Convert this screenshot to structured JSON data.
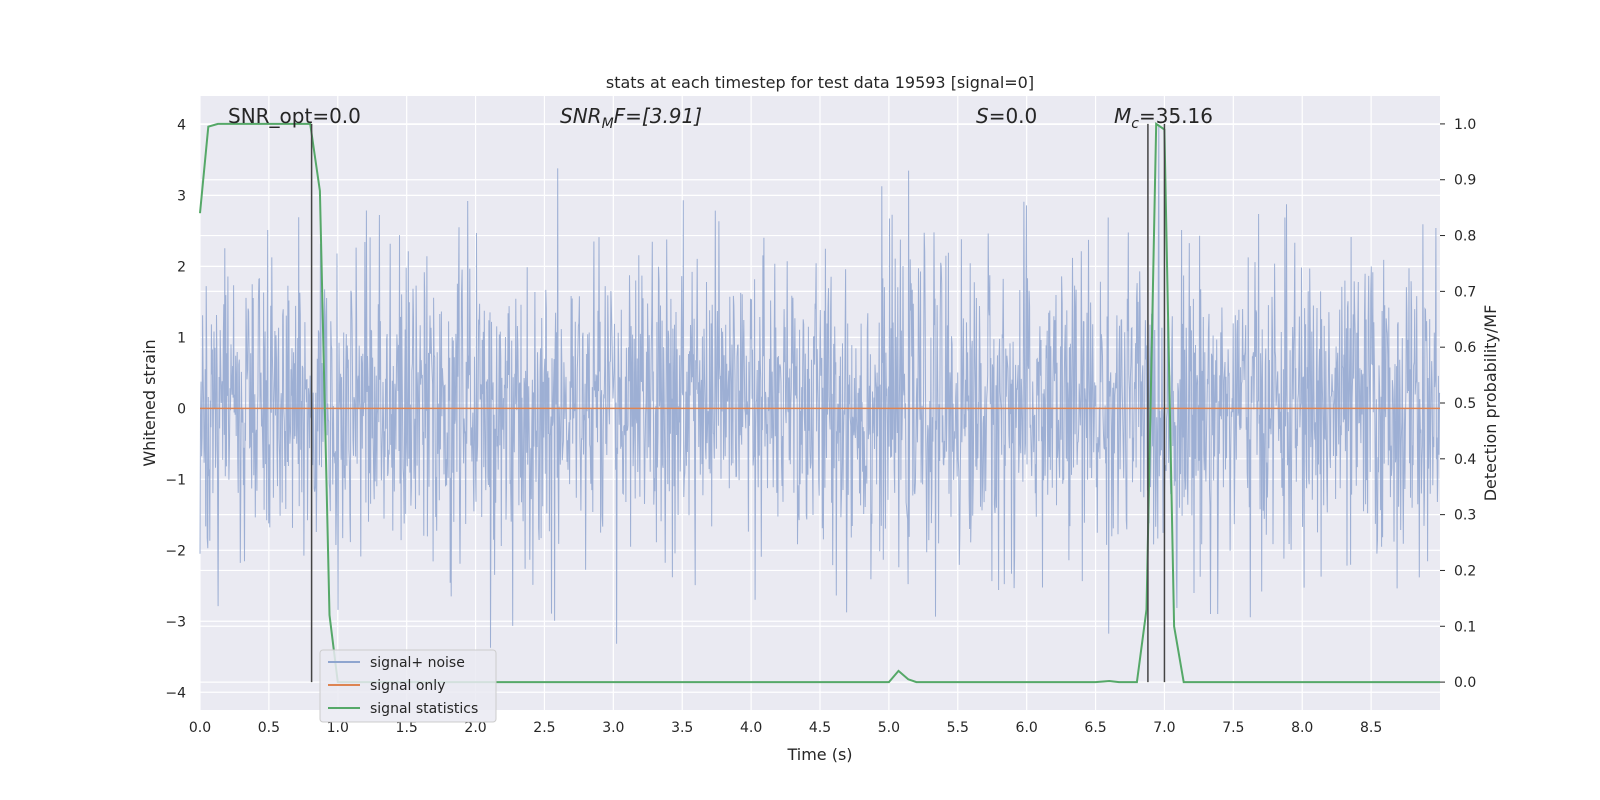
{
  "chart_data": {
    "type": "line",
    "title": "stats at each timestep for test data 19593 [signal=0]",
    "xlabel": "Time (s)",
    "ylabel_left": "Whitened strain",
    "ylabel_right": "Detection probability/MF",
    "xlim": [
      0.0,
      9.0
    ],
    "ylim_left": [
      -4.25,
      4.4
    ],
    "ylim_right": [
      -0.05,
      1.05
    ],
    "x_ticks": [
      "0.0",
      "0.5",
      "1.0",
      "1.5",
      "2.0",
      "2.5",
      "3.0",
      "3.5",
      "4.0",
      "4.5",
      "5.0",
      "5.5",
      "6.0",
      "6.5",
      "7.0",
      "7.5",
      "8.0",
      "8.5"
    ],
    "y_ticks_left": [
      "4",
      "3",
      "2",
      "1",
      "0",
      "−1",
      "−2",
      "−3",
      "−4"
    ],
    "y_ticks_right": [
      "1.0",
      "0.9",
      "0.8",
      "0.7",
      "0.6",
      "0.5",
      "0.4",
      "0.3",
      "0.2",
      "0.1",
      "0.0"
    ],
    "grid": true,
    "legend_position": "lower-left",
    "annotations": {
      "snr_opt": "SNR_opt=0.0",
      "snr_mf_main": "SNR",
      "snr_mf_sub": "M",
      "snr_mf_rest": "F=[3.91]",
      "s_main": "S",
      "s_rest": "=0.0",
      "mc_main": "M",
      "mc_sub": "c",
      "mc_rest": "=35.16"
    },
    "series": [
      {
        "name": "signal+ noise",
        "axis": "left",
        "color": "#8fa5cf",
        "description_values": "dense whitened noise, amplitude roughly within -3.8 to 4.0"
      },
      {
        "name": "signal only",
        "axis": "left",
        "color": "#dd8452",
        "x": [
          0.0,
          9.0
        ],
        "y": [
          0.0,
          0.0
        ]
      },
      {
        "name": "signal statistics",
        "axis": "right",
        "color": "#55a868",
        "x": [
          0.0,
          0.06,
          0.13,
          0.2,
          0.3,
          0.4,
          0.5,
          0.6,
          0.7,
          0.8,
          0.87,
          0.94,
          1.0,
          1.07,
          1.5,
          2.0,
          3.0,
          4.0,
          4.9,
          5.0,
          5.07,
          5.14,
          5.2,
          5.3,
          6.0,
          6.5,
          6.6,
          6.67,
          6.8,
          6.87,
          6.94,
          7.0,
          7.07,
          7.14,
          7.2,
          7.5,
          8.0,
          8.5,
          9.0
        ],
        "y": [
          0.84,
          0.995,
          1.0,
          1.0,
          1.0,
          1.0,
          1.0,
          1.0,
          1.0,
          1.0,
          0.88,
          0.12,
          0.0,
          0.0,
          0.0,
          0.0,
          0.0,
          0.0,
          0.0,
          0.0,
          0.02,
          0.005,
          0.0,
          0.0,
          0.0,
          0.0,
          0.002,
          0.0,
          0.0,
          0.13,
          1.0,
          0.99,
          0.1,
          0.0,
          0.0,
          0.0,
          0.0,
          0.0,
          0.0
        ]
      }
    ],
    "vertical_markers": [
      0.81,
      6.88,
      7.0
    ]
  }
}
